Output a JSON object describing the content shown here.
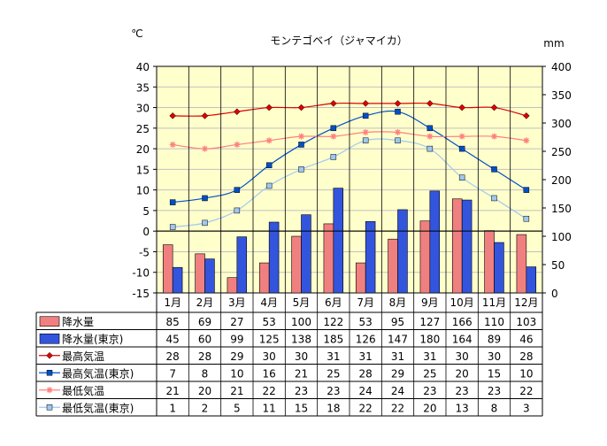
{
  "chart_data": {
    "type": "bar",
    "title": "モンテゴベイ（ジャマイカ）",
    "left_unit": "℃",
    "right_unit": "mm",
    "categories": [
      "1月",
      "2月",
      "3月",
      "4月",
      "5月",
      "6月",
      "7月",
      "8月",
      "9月",
      "10月",
      "11月",
      "12月"
    ],
    "ylim_left": [
      -15,
      40
    ],
    "ylim_right": [
      0,
      400
    ],
    "left_ticks": [
      "40",
      "35",
      "30",
      "25",
      "20",
      "15",
      "10",
      "5",
      "0",
      "-5",
      "-10",
      "-15"
    ],
    "right_ticks": [
      "400",
      "350",
      "300",
      "250",
      "200",
      "150",
      "100",
      "50",
      "0"
    ],
    "series": [
      {
        "name": "降水量",
        "type": "bar",
        "axis": "right",
        "color": "#f08080",
        "values": [
          85,
          69,
          27,
          53,
          100,
          122,
          53,
          95,
          127,
          166,
          110,
          103
        ],
        "labels": [
          "85",
          "69",
          "27",
          "53",
          "100",
          "122",
          "53",
          "95",
          "127",
          "166",
          "110",
          "103"
        ]
      },
      {
        "name": "降水量(東京)",
        "type": "bar",
        "axis": "right",
        "color": "#3355dd",
        "values": [
          45,
          60,
          99,
          125,
          138,
          185,
          126,
          147,
          180,
          164,
          89,
          46
        ],
        "labels": [
          "45",
          "60",
          "99",
          "125",
          "138",
          "185",
          "126",
          "147",
          "180",
          "164",
          "89",
          "46"
        ]
      },
      {
        "name": "最高気温",
        "type": "line",
        "axis": "left",
        "color": "#dd0000",
        "marker": "diamond",
        "values": [
          28,
          28,
          29,
          30,
          30,
          31,
          31,
          31,
          31,
          30,
          30,
          28
        ],
        "labels": [
          "28",
          "28",
          "29",
          "30",
          "30",
          "31",
          "31",
          "31",
          "31",
          "30",
          "30",
          "28"
        ]
      },
      {
        "name": "最高気温(東京)",
        "type": "line",
        "axis": "left",
        "color": "#0050c8",
        "marker": "square",
        "values": [
          7,
          8,
          10,
          16,
          21,
          25,
          28,
          29,
          25,
          20,
          15,
          10
        ],
        "labels": [
          "7",
          "8",
          "10",
          "16",
          "21",
          "25",
          "28",
          "29",
          "25",
          "20",
          "15",
          "10"
        ]
      },
      {
        "name": "最低気温",
        "type": "line",
        "axis": "left",
        "color": "#ff7f7f",
        "marker": "asterisk",
        "values": [
          21,
          20,
          21,
          22,
          23,
          23,
          24,
          24,
          23,
          23,
          23,
          22
        ],
        "labels": [
          "21",
          "20",
          "21",
          "22",
          "23",
          "23",
          "24",
          "24",
          "23",
          "23",
          "23",
          "22"
        ]
      },
      {
        "name": "最低気温(東京)",
        "type": "line",
        "axis": "left",
        "color": "#9fc8f0",
        "marker": "square",
        "values": [
          1,
          2,
          5,
          11,
          15,
          18,
          22,
          22,
          20,
          13,
          8,
          3
        ],
        "labels": [
          "1",
          "2",
          "5",
          "11",
          "15",
          "18",
          "22",
          "22",
          "20",
          "13",
          "8",
          "3"
        ]
      }
    ],
    "plot_background": "#ffffcc",
    "grid": true,
    "legend": "table-below"
  }
}
